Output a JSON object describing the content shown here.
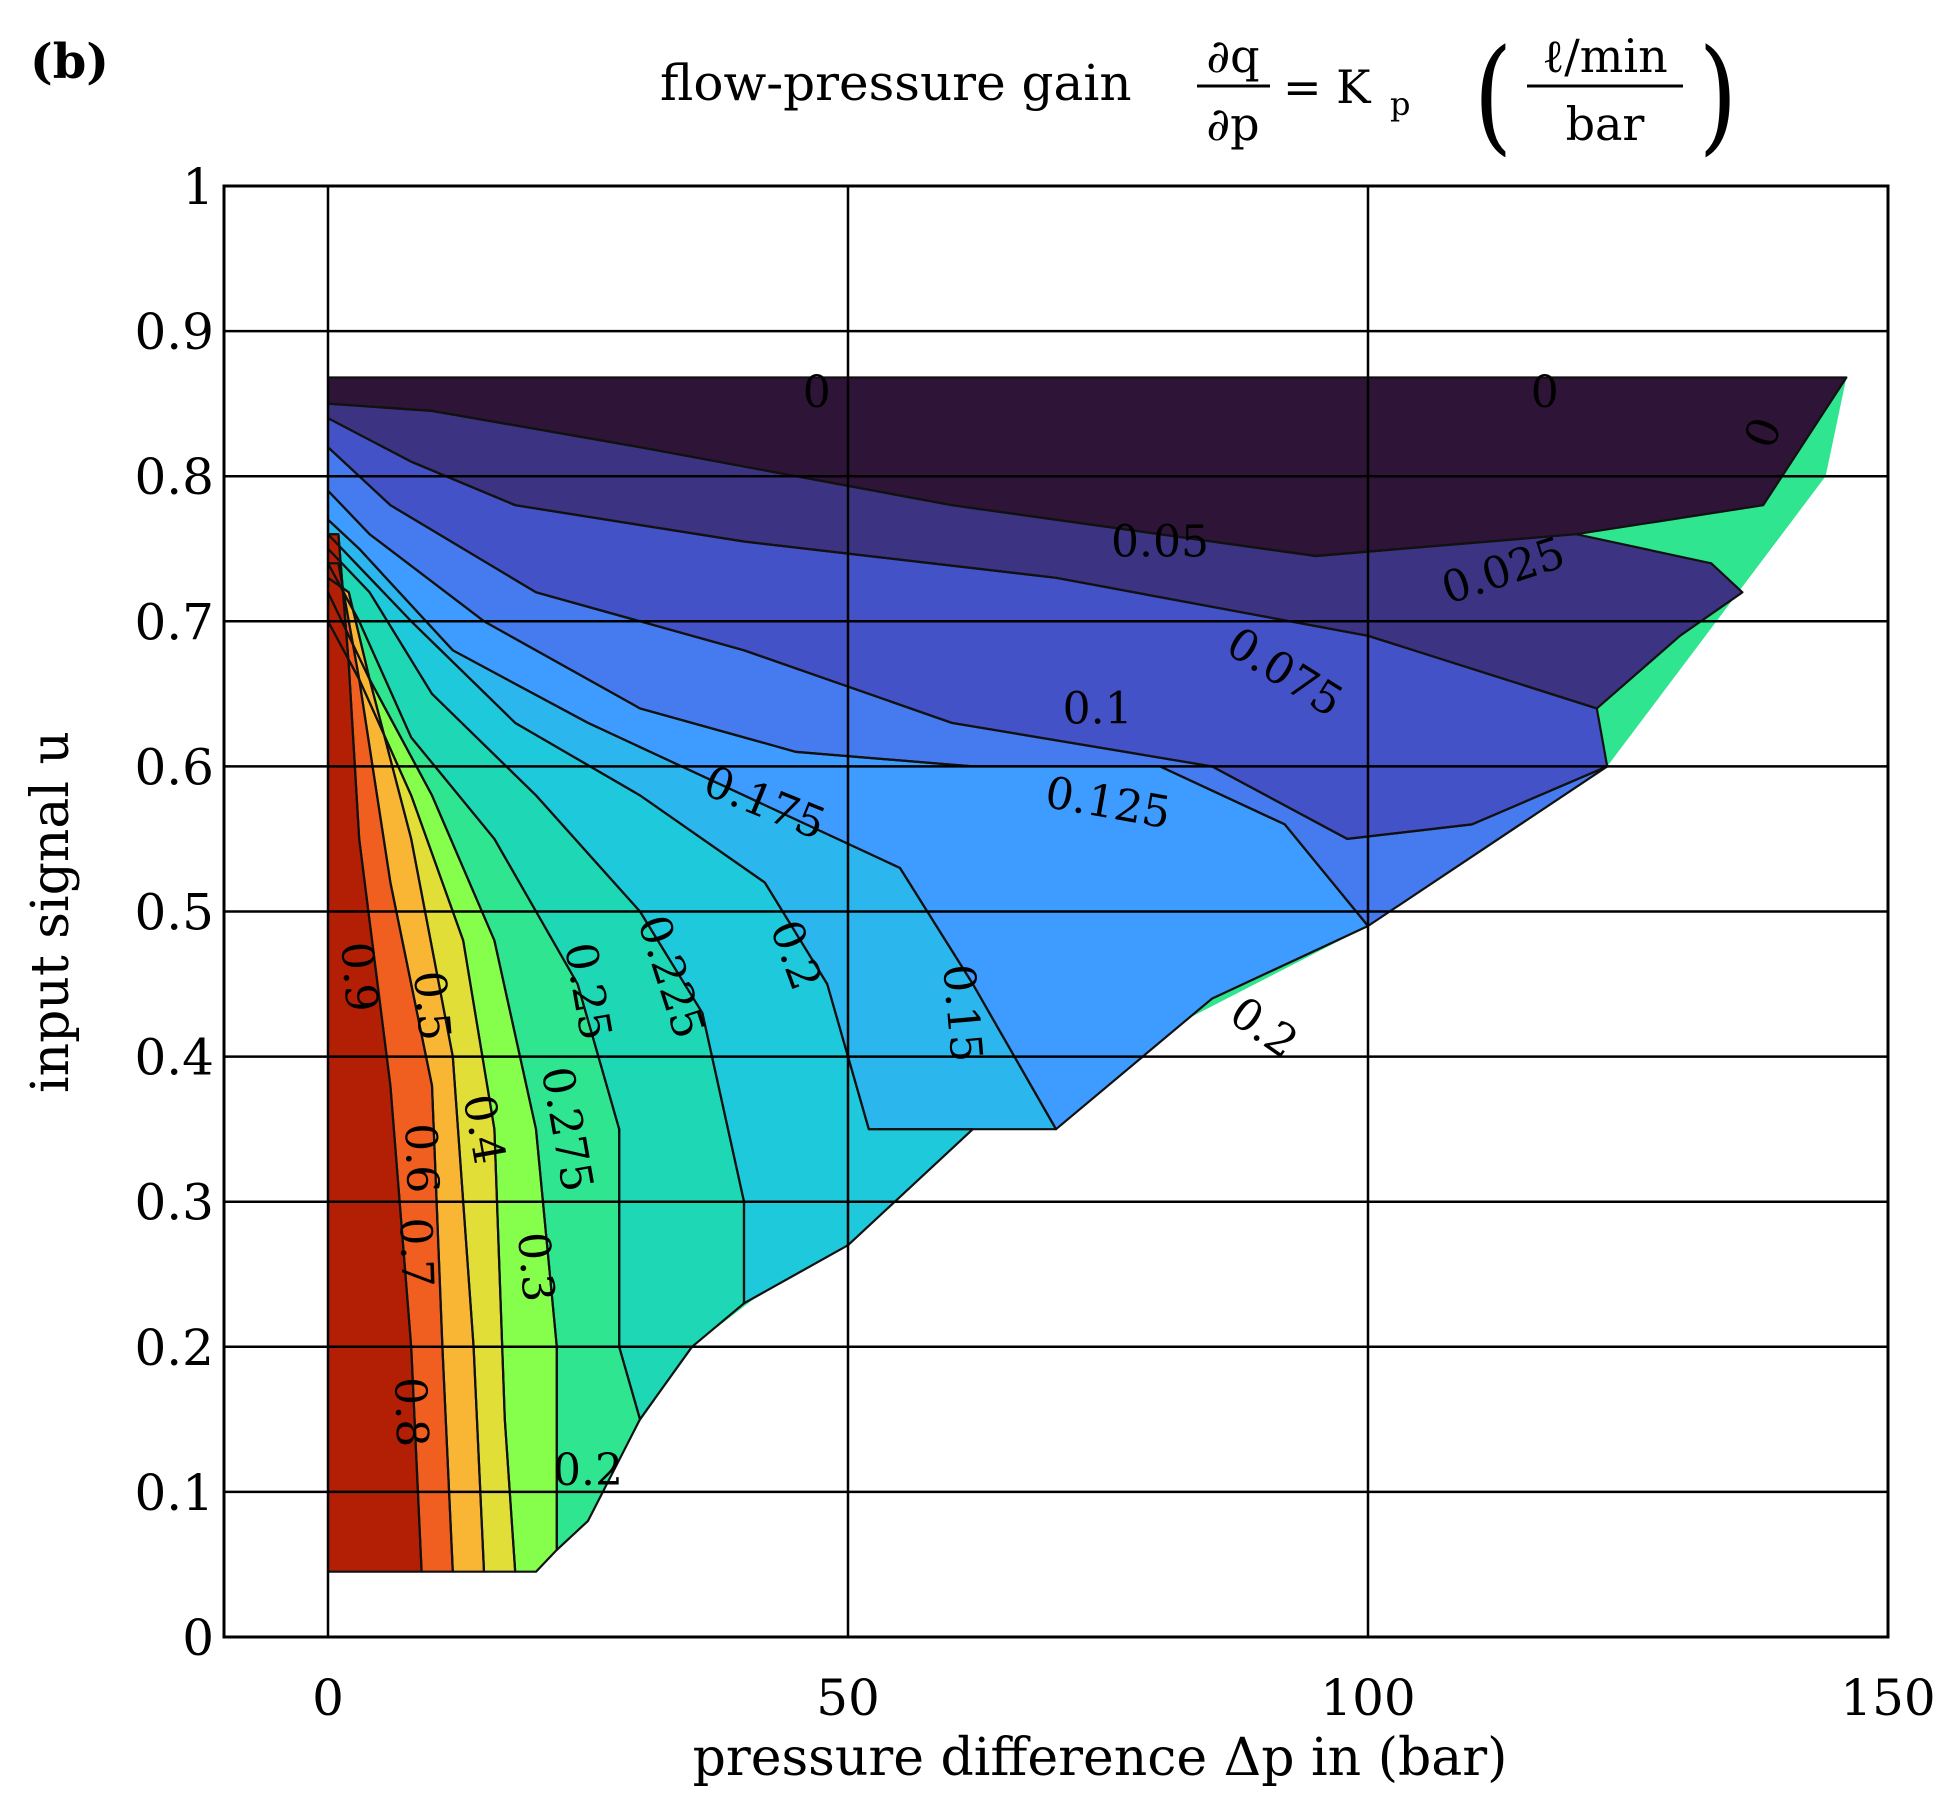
{
  "panel_label": "(b)",
  "title": {
    "text": "flow-pressure gain",
    "frac_num": "∂q",
    "frac_den": "∂p",
    "equals": "= K",
    "subscript": "p",
    "unit_num": "ℓ/min",
    "unit_den": "bar"
  },
  "chart_data": {
    "type": "contour",
    "title": "flow-pressure gain ∂q/∂p = Kp (ℓ/min / bar)",
    "xlabel": "pressure difference Δp in (bar)",
    "ylabel": "input signal u",
    "xlim": [
      -10,
      150
    ],
    "ylim": [
      0,
      1
    ],
    "xticks": [
      0,
      50,
      100,
      150
    ],
    "yticks": [
      0,
      0.1,
      0.2,
      0.3,
      0.4,
      0.5,
      0.6,
      0.7,
      0.8,
      0.9,
      1
    ],
    "xtick_labels": [
      "0",
      "50",
      "100",
      "150"
    ],
    "ytick_labels": [
      "0",
      "0.1",
      "0.2",
      "0.3",
      "0.4",
      "0.5",
      "0.6",
      "0.7",
      "0.8",
      "0.9",
      "1"
    ],
    "grid": true,
    "domain_boundary": [
      [
        0,
        0.045
      ],
      [
        20,
        0.045
      ],
      [
        35,
        0.2
      ],
      [
        62,
        0.35
      ],
      [
        100,
        0.49
      ],
      [
        123,
        0.6
      ],
      [
        144,
        0.8
      ],
      [
        146,
        0.868
      ],
      [
        0,
        0.868
      ]
    ],
    "levels": [
      0,
      0.025,
      0.05,
      0.075,
      0.1,
      0.125,
      0.15,
      0.175,
      0.2,
      0.225,
      0.25,
      0.275,
      0.3,
      0.4,
      0.5,
      0.6,
      0.7,
      0.8,
      0.9
    ],
    "level_colors": [
      "#2e1436",
      "#3c3482",
      "#4452c7",
      "#457bee",
      "#3e9bff",
      "#2cb6ee",
      "#1ec9db",
      "#1ed8b5",
      "#2fe58f",
      "#4df77a",
      "#86fe4c",
      "#bdf23a",
      "#e2de38",
      "#f9b534",
      "#fb8a2b",
      "#f05e20",
      "#d63b11",
      "#b21f05",
      "#8a0c00",
      "#790400"
    ],
    "bands": [
      {
        "level": 0.0,
        "path": [
          [
            0,
            0.868
          ],
          [
            146,
            0.868
          ],
          [
            138,
            0.78
          ],
          [
            120,
            0.76
          ],
          [
            95,
            0.745
          ],
          [
            60,
            0.78
          ],
          [
            30,
            0.82
          ],
          [
            10,
            0.845
          ],
          [
            0,
            0.85
          ]
        ]
      },
      {
        "level": 0.025,
        "path": [
          [
            0,
            0.85
          ],
          [
            10,
            0.845
          ],
          [
            30,
            0.82
          ],
          [
            60,
            0.78
          ],
          [
            95,
            0.745
          ],
          [
            120,
            0.76
          ],
          [
            133,
            0.74
          ],
          [
            136,
            0.72
          ],
          [
            130,
            0.69
          ],
          [
            122,
            0.64
          ],
          [
            100,
            0.69
          ],
          [
            70,
            0.73
          ],
          [
            40,
            0.755
          ],
          [
            18,
            0.78
          ],
          [
            8,
            0.81
          ],
          [
            0,
            0.84
          ]
        ]
      },
      {
        "level": 0.05,
        "path": [
          [
            0,
            0.84
          ],
          [
            8,
            0.81
          ],
          [
            18,
            0.78
          ],
          [
            40,
            0.755
          ],
          [
            70,
            0.73
          ],
          [
            100,
            0.69
          ],
          [
            122,
            0.64
          ],
          [
            123,
            0.6
          ],
          [
            110,
            0.56
          ],
          [
            98,
            0.55
          ],
          [
            85,
            0.6
          ],
          [
            60,
            0.63
          ],
          [
            40,
            0.68
          ],
          [
            20,
            0.72
          ],
          [
            6,
            0.78
          ],
          [
            0,
            0.82
          ]
        ]
      },
      {
        "level": 0.075,
        "path": [
          [
            0,
            0.82
          ],
          [
            6,
            0.78
          ],
          [
            20,
            0.72
          ],
          [
            40,
            0.68
          ],
          [
            60,
            0.63
          ],
          [
            85,
            0.6
          ],
          [
            98,
            0.55
          ],
          [
            110,
            0.56
          ],
          [
            123,
            0.6
          ],
          [
            100,
            0.49
          ],
          [
            92,
            0.56
          ],
          [
            80,
            0.6
          ],
          [
            62,
            0.6
          ],
          [
            45,
            0.61
          ],
          [
            30,
            0.64
          ],
          [
            15,
            0.7
          ],
          [
            4,
            0.76
          ],
          [
            0,
            0.79
          ]
        ]
      },
      {
        "level": 0.1,
        "path": [
          [
            0,
            0.79
          ],
          [
            4,
            0.76
          ],
          [
            15,
            0.7
          ],
          [
            30,
            0.64
          ],
          [
            45,
            0.61
          ],
          [
            62,
            0.6
          ],
          [
            80,
            0.6
          ],
          [
            92,
            0.56
          ],
          [
            100,
            0.49
          ],
          [
            85,
            0.44
          ],
          [
            70,
            0.35
          ],
          [
            62,
            0.45
          ],
          [
            55,
            0.53
          ],
          [
            40,
            0.58
          ],
          [
            25,
            0.63
          ],
          [
            12,
            0.68
          ],
          [
            3,
            0.75
          ],
          [
            0,
            0.77
          ]
        ]
      },
      {
        "level": 0.125,
        "path": [
          [
            0,
            0.77
          ],
          [
            3,
            0.75
          ],
          [
            12,
            0.68
          ],
          [
            25,
            0.63
          ],
          [
            40,
            0.58
          ],
          [
            55,
            0.53
          ],
          [
            62,
            0.45
          ],
          [
            70,
            0.35
          ],
          [
            62,
            0.35
          ],
          [
            52,
            0.35
          ],
          [
            48,
            0.45
          ],
          [
            42,
            0.52
          ],
          [
            30,
            0.58
          ],
          [
            18,
            0.63
          ],
          [
            8,
            0.7
          ],
          [
            0,
            0.76
          ]
        ]
      },
      {
        "level": 0.15,
        "path": [
          [
            0,
            0.76
          ],
          [
            8,
            0.7
          ],
          [
            18,
            0.63
          ],
          [
            30,
            0.58
          ],
          [
            42,
            0.52
          ],
          [
            48,
            0.45
          ],
          [
            52,
            0.35
          ],
          [
            62,
            0.35
          ],
          [
            50,
            0.27
          ],
          [
            40,
            0.23
          ],
          [
            40,
            0.3
          ],
          [
            36,
            0.43
          ],
          [
            30,
            0.5
          ],
          [
            20,
            0.58
          ],
          [
            10,
            0.65
          ],
          [
            4,
            0.72
          ],
          [
            0,
            0.75
          ]
        ]
      },
      {
        "level": 0.175,
        "path": [
          [
            0,
            0.75
          ],
          [
            4,
            0.72
          ],
          [
            10,
            0.65
          ],
          [
            20,
            0.58
          ],
          [
            30,
            0.5
          ],
          [
            36,
            0.43
          ],
          [
            40,
            0.3
          ],
          [
            40,
            0.23
          ],
          [
            35,
            0.2
          ],
          [
            30,
            0.15
          ],
          [
            28,
            0.2
          ],
          [
            28,
            0.35
          ],
          [
            24,
            0.45
          ],
          [
            16,
            0.55
          ],
          [
            8,
            0.62
          ],
          [
            3,
            0.7
          ],
          [
            0,
            0.74
          ]
        ]
      },
      {
        "level": 0.2,
        "path": [
          [
            0,
            0.74
          ],
          [
            3,
            0.7
          ],
          [
            8,
            0.62
          ],
          [
            16,
            0.55
          ],
          [
            24,
            0.45
          ],
          [
            28,
            0.35
          ],
          [
            28,
            0.2
          ],
          [
            30,
            0.15
          ],
          [
            25,
            0.08
          ],
          [
            22,
            0.06
          ],
          [
            22,
            0.2
          ],
          [
            20,
            0.35
          ],
          [
            16,
            0.48
          ],
          [
            10,
            0.58
          ],
          [
            4,
            0.66
          ],
          [
            0,
            0.72
          ]
        ]
      },
      {
        "level": 0.25,
        "path": [
          [
            0,
            0.72
          ],
          [
            4,
            0.66
          ],
          [
            10,
            0.58
          ],
          [
            16,
            0.48
          ],
          [
            20,
            0.35
          ],
          [
            22,
            0.2
          ],
          [
            22,
            0.06
          ],
          [
            20,
            0.045
          ],
          [
            18,
            0.045
          ],
          [
            17,
            0.15
          ],
          [
            16,
            0.35
          ],
          [
            13,
            0.48
          ],
          [
            8,
            0.58
          ],
          [
            3,
            0.66
          ],
          [
            0,
            0.7
          ]
        ]
      },
      {
        "level": 0.3,
        "path": [
          [
            0,
            0.7
          ],
          [
            3,
            0.66
          ],
          [
            8,
            0.58
          ],
          [
            13,
            0.48
          ],
          [
            16,
            0.35
          ],
          [
            17,
            0.15
          ],
          [
            18,
            0.045
          ],
          [
            15,
            0.045
          ],
          [
            14,
            0.2
          ],
          [
            12,
            0.4
          ],
          [
            8,
            0.55
          ],
          [
            4,
            0.66
          ],
          [
            2,
            0.72
          ],
          [
            0,
            0.73
          ]
        ]
      },
      {
        "level": 0.4,
        "path": [
          [
            0,
            0.73
          ],
          [
            2,
            0.72
          ],
          [
            4,
            0.66
          ],
          [
            8,
            0.55
          ],
          [
            12,
            0.4
          ],
          [
            14,
            0.2
          ],
          [
            15,
            0.045
          ],
          [
            12,
            0.045
          ],
          [
            11,
            0.2
          ],
          [
            10,
            0.38
          ],
          [
            6,
            0.52
          ],
          [
            3,
            0.66
          ],
          [
            1,
            0.74
          ],
          [
            0,
            0.74
          ]
        ]
      },
      {
        "level": 0.6,
        "path": [
          [
            0,
            0.74
          ],
          [
            1,
            0.74
          ],
          [
            3,
            0.66
          ],
          [
            6,
            0.52
          ],
          [
            10,
            0.38
          ],
          [
            11,
            0.2
          ],
          [
            12,
            0.045
          ],
          [
            9,
            0.045
          ],
          [
            8,
            0.2
          ],
          [
            6,
            0.38
          ],
          [
            3,
            0.55
          ],
          [
            2,
            0.67
          ],
          [
            1,
            0.76
          ],
          [
            0,
            0.76
          ]
        ]
      },
      {
        "level": 0.8,
        "path": [
          [
            0,
            0.76
          ],
          [
            1,
            0.76
          ],
          [
            2,
            0.67
          ],
          [
            3,
            0.55
          ],
          [
            6,
            0.38
          ],
          [
            8,
            0.2
          ],
          [
            9,
            0.045
          ],
          [
            0,
            0.045
          ]
        ]
      }
    ],
    "contour_labels": [
      {
        "text": "0",
        "x": 47,
        "y": 0.858,
        "rot": 0
      },
      {
        "text": "0",
        "x": 117,
        "y": 0.858,
        "rot": 0
      },
      {
        "text": "0",
        "x": 138,
        "y": 0.83,
        "rot": -70
      },
      {
        "text": "0.025",
        "x": 113,
        "y": 0.735,
        "rot": -18
      },
      {
        "text": "0.05",
        "x": 80,
        "y": 0.755,
        "rot": 0
      },
      {
        "text": "0.075",
        "x": 92,
        "y": 0.665,
        "rot": 32
      },
      {
        "text": "0.1",
        "x": 74,
        "y": 0.64,
        "rot": 0
      },
      {
        "text": "0.125",
        "x": 75,
        "y": 0.575,
        "rot": 10
      },
      {
        "text": "0.175",
        "x": 42,
        "y": 0.575,
        "rot": 22
      },
      {
        "text": "0.2",
        "x": 45,
        "y": 0.47,
        "rot": 70
      },
      {
        "text": "0.15",
        "x": 61,
        "y": 0.43,
        "rot": 85
      },
      {
        "text": "0.225",
        "x": 33,
        "y": 0.455,
        "rot": 72
      },
      {
        "text": "0.25",
        "x": 25,
        "y": 0.445,
        "rot": 80
      },
      {
        "text": "0.275",
        "x": 23,
        "y": 0.35,
        "rot": 80
      },
      {
        "text": "0.3",
        "x": 20,
        "y": 0.255,
        "rot": 85
      },
      {
        "text": "0.4",
        "x": 15,
        "y": 0.35,
        "rot": 80
      },
      {
        "text": "0.5",
        "x": 10,
        "y": 0.435,
        "rot": 85
      },
      {
        "text": "0.6",
        "x": 9,
        "y": 0.33,
        "rot": 88
      },
      {
        "text": "0.7",
        "x": 8.5,
        "y": 0.265,
        "rot": 88
      },
      {
        "text": "0.8",
        "x": 8,
        "y": 0.155,
        "rot": 88
      },
      {
        "text": "0.9",
        "x": 3,
        "y": 0.455,
        "rot": 85
      },
      {
        "text": "0.2",
        "x": 25,
        "y": 0.115,
        "rot": 0
      },
      {
        "text": "0.2",
        "x": 90,
        "y": 0.42,
        "rot": 35
      }
    ]
  }
}
